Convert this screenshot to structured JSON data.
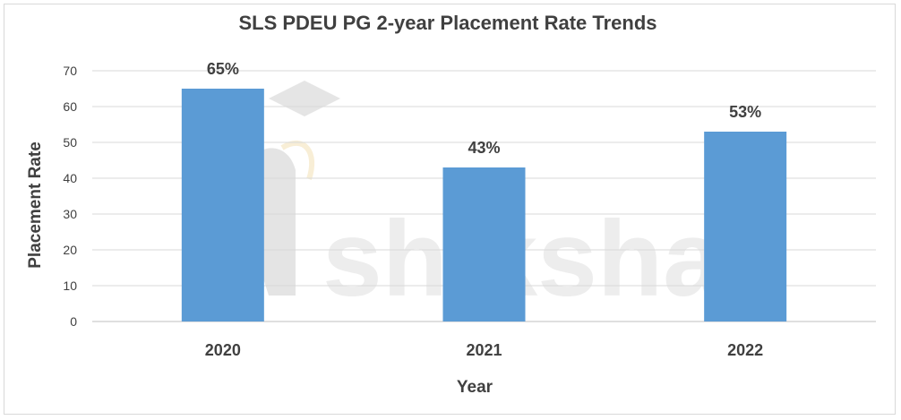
{
  "chart_data": {
    "type": "bar",
    "title": "SLS PDEU PG 2-year Placement Rate Trends",
    "xlabel": "Year",
    "ylabel": "Placement Rate",
    "categories": [
      "2020",
      "2021",
      "2022"
    ],
    "values": [
      65,
      43,
      53
    ],
    "data_labels": [
      "65%",
      "43%",
      "53%"
    ],
    "ylim": [
      0,
      70
    ],
    "yticks": [
      0,
      10,
      20,
      30,
      40,
      50,
      60,
      70
    ],
    "grid": true,
    "legend": "none",
    "bar_color": "#5b9bd5"
  },
  "watermark": {
    "text": "shiksha"
  }
}
